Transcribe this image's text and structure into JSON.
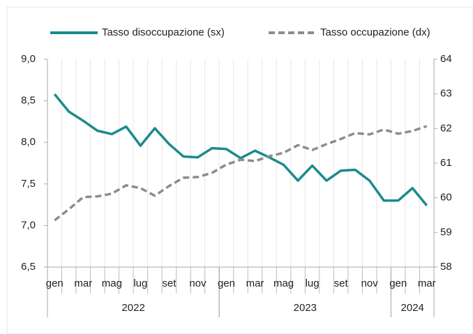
{
  "chart_data": {
    "type": "line",
    "categories": [
      "gen",
      null,
      "mar",
      null,
      "mag",
      null,
      "lug",
      null,
      "set",
      null,
      "nov",
      null,
      "gen",
      null,
      "mar",
      null,
      "mag",
      null,
      "lug",
      null,
      "set",
      null,
      "nov",
      null,
      "gen",
      null,
      "mar"
    ],
    "years": [
      "2022",
      "2023",
      "2024"
    ],
    "series": [
      {
        "name": "Tasso disoccupazione (sx)",
        "color": "#1b8b8b",
        "dash": false,
        "values": [
          8.58,
          8.37,
          8.26,
          8.14,
          8.1,
          8.19,
          7.96,
          8.17,
          7.98,
          7.83,
          7.82,
          7.93,
          7.92,
          7.81,
          7.9,
          7.82,
          7.73,
          7.54,
          7.72,
          7.54,
          7.66,
          7.67,
          7.54,
          7.3,
          7.3,
          7.45,
          7.24
        ]
      },
      {
        "name": "Tasso occupazione (dx)",
        "color": "#8c8c8c",
        "dash": true,
        "axis": "y2",
        "values": [
          59.35,
          59.67,
          60.02,
          60.04,
          60.12,
          60.36,
          60.28,
          60.06,
          60.34,
          60.58,
          60.6,
          60.72,
          60.96,
          61.1,
          61.06,
          61.2,
          61.3,
          61.52,
          61.38,
          61.55,
          61.7,
          61.87,
          61.83,
          61.97,
          61.85,
          61.93,
          62.07
        ]
      }
    ],
    "ylim": [
      6.5,
      9.0
    ],
    "yticks": [
      {
        "value": 6.5,
        "label": "6,5"
      },
      {
        "value": 7.0,
        "label": "7,0"
      },
      {
        "value": 7.5,
        "label": "7,5"
      },
      {
        "value": 8.0,
        "label": "8,0"
      },
      {
        "value": 8.5,
        "label": "8,5"
      },
      {
        "value": 9.0,
        "label": "9,0"
      }
    ],
    "y2lim": [
      58,
      64
    ],
    "y2ticks": [
      58,
      59,
      60,
      61,
      62,
      63,
      64
    ],
    "legend": "top"
  }
}
